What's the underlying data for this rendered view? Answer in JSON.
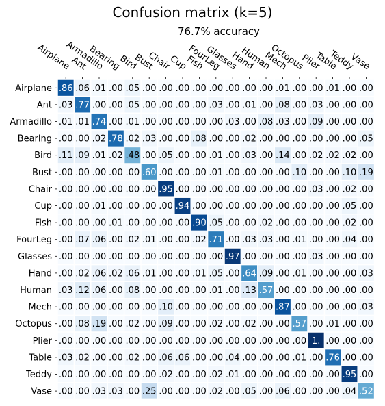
{
  "chart_data": {
    "type": "heatmap",
    "title": "Confusion matrix (k=5)",
    "subtitle": "76.7% accuracy",
    "labels": [
      "Airplane",
      "Ant",
      "Armadillo",
      "Bearing",
      "Bird",
      "Bust",
      "Chair",
      "Cup",
      "Fish",
      "FourLeg",
      "Glasses",
      "Hand",
      "Human",
      "Mech",
      "Octopus",
      "Plier",
      "Table",
      "Teddy",
      "Vase"
    ],
    "colormap": "Blues",
    "matrix": [
      [
        ".86",
        ".06",
        ".01",
        ".00",
        ".05",
        ".00",
        ".00",
        ".00",
        ".00",
        ".00",
        ".00",
        ".00",
        ".00",
        ".01",
        ".00",
        ".00",
        ".01",
        ".00",
        ".00"
      ],
      [
        ".03",
        ".77",
        ".00",
        ".00",
        ".05",
        ".00",
        ".00",
        ".00",
        ".00",
        ".03",
        ".00",
        ".01",
        ".00",
        ".08",
        ".00",
        ".03",
        ".00",
        ".00",
        ".00"
      ],
      [
        ".01",
        ".01",
        ".74",
        ".00",
        ".01",
        ".00",
        ".00",
        ".00",
        ".00",
        ".00",
        ".03",
        ".00",
        ".08",
        ".03",
        ".00",
        ".09",
        ".00",
        ".00",
        ".00"
      ],
      [
        ".00",
        ".00",
        ".02",
        ".78",
        ".02",
        ".03",
        ".00",
        ".00",
        ".08",
        ".00",
        ".00",
        ".02",
        ".00",
        ".00",
        ".00",
        ".00",
        ".00",
        ".00",
        ".05"
      ],
      [
        ".11",
        ".09",
        ".01",
        ".02",
        ".48",
        ".00",
        ".05",
        ".00",
        ".00",
        ".01",
        ".00",
        ".03",
        ".00",
        ".14",
        ".00",
        ".02",
        ".02",
        ".02",
        ".00"
      ],
      [
        ".00",
        ".00",
        ".00",
        ".00",
        ".00",
        ".60",
        ".00",
        ".00",
        ".00",
        ".01",
        ".00",
        ".00",
        ".00",
        ".00",
        ".10",
        ".00",
        ".00",
        ".10",
        ".19"
      ],
      [
        ".00",
        ".00",
        ".00",
        ".00",
        ".00",
        ".00",
        ".95",
        ".00",
        ".00",
        ".00",
        ".00",
        ".00",
        ".00",
        ".00",
        ".00",
        ".03",
        ".00",
        ".02",
        ".00"
      ],
      [
        ".00",
        ".00",
        ".01",
        ".00",
        ".00",
        ".00",
        ".00",
        ".94",
        ".00",
        ".00",
        ".00",
        ".00",
        ".00",
        ".00",
        ".00",
        ".00",
        ".00",
        ".05",
        ".00"
      ],
      [
        ".00",
        ".00",
        ".00",
        ".01",
        ".00",
        ".00",
        ".00",
        ".00",
        ".90",
        ".05",
        ".00",
        ".00",
        ".02",
        ".00",
        ".00",
        ".00",
        ".00",
        ".02",
        ".00"
      ],
      [
        ".00",
        ".07",
        ".06",
        ".00",
        ".02",
        ".01",
        ".00",
        ".00",
        ".02",
        ".71",
        ".00",
        ".03",
        ".03",
        ".00",
        ".01",
        ".00",
        ".00",
        ".04",
        ".00"
      ],
      [
        ".00",
        ".00",
        ".00",
        ".00",
        ".00",
        ".00",
        ".00",
        ".00",
        ".00",
        ".00",
        ".97",
        ".00",
        ".00",
        ".00",
        ".00",
        ".03",
        ".00",
        ".00",
        ".00"
      ],
      [
        ".00",
        ".02",
        ".06",
        ".02",
        ".06",
        ".01",
        ".00",
        ".00",
        ".01",
        ".05",
        ".00",
        ".64",
        ".09",
        ".00",
        ".01",
        ".00",
        ".00",
        ".00",
        ".03"
      ],
      [
        ".03",
        ".12",
        ".06",
        ".00",
        ".08",
        ".00",
        ".00",
        ".00",
        ".00",
        ".01",
        ".00",
        ".13",
        ".57",
        ".00",
        ".00",
        ".00",
        ".00",
        ".00",
        ".00"
      ],
      [
        ".00",
        ".00",
        ".00",
        ".00",
        ".00",
        ".00",
        ".10",
        ".00",
        ".00",
        ".00",
        ".00",
        ".00",
        ".00",
        ".87",
        ".00",
        ".00",
        ".00",
        ".00",
        ".03"
      ],
      [
        ".00",
        ".08",
        ".19",
        ".00",
        ".02",
        ".00",
        ".09",
        ".00",
        ".00",
        ".02",
        ".00",
        ".02",
        ".00",
        ".00",
        ".57",
        ".00",
        ".01",
        ".00",
        ".00"
      ],
      [
        ".00",
        ".00",
        ".00",
        ".00",
        ".00",
        ".00",
        ".00",
        ".00",
        ".00",
        ".00",
        ".00",
        ".00",
        ".00",
        ".00",
        ".00",
        "1.",
        ".00",
        ".00",
        ".00"
      ],
      [
        ".03",
        ".02",
        ".00",
        ".00",
        ".02",
        ".00",
        ".06",
        ".06",
        ".00",
        ".00",
        ".04",
        ".00",
        ".00",
        ".00",
        ".01",
        ".00",
        ".76",
        ".00",
        ".00"
      ],
      [
        ".00",
        ".00",
        ".00",
        ".00",
        ".00",
        ".00",
        ".02",
        ".00",
        ".00",
        ".02",
        ".01",
        ".00",
        ".00",
        ".00",
        ".00",
        ".00",
        ".00",
        ".95",
        ".00"
      ],
      [
        ".00",
        ".00",
        ".03",
        ".03",
        ".00",
        ".25",
        ".00",
        ".00",
        ".00",
        ".02",
        ".00",
        ".05",
        ".00",
        ".06",
        ".00",
        ".00",
        ".00",
        ".04",
        ".52"
      ]
    ]
  }
}
